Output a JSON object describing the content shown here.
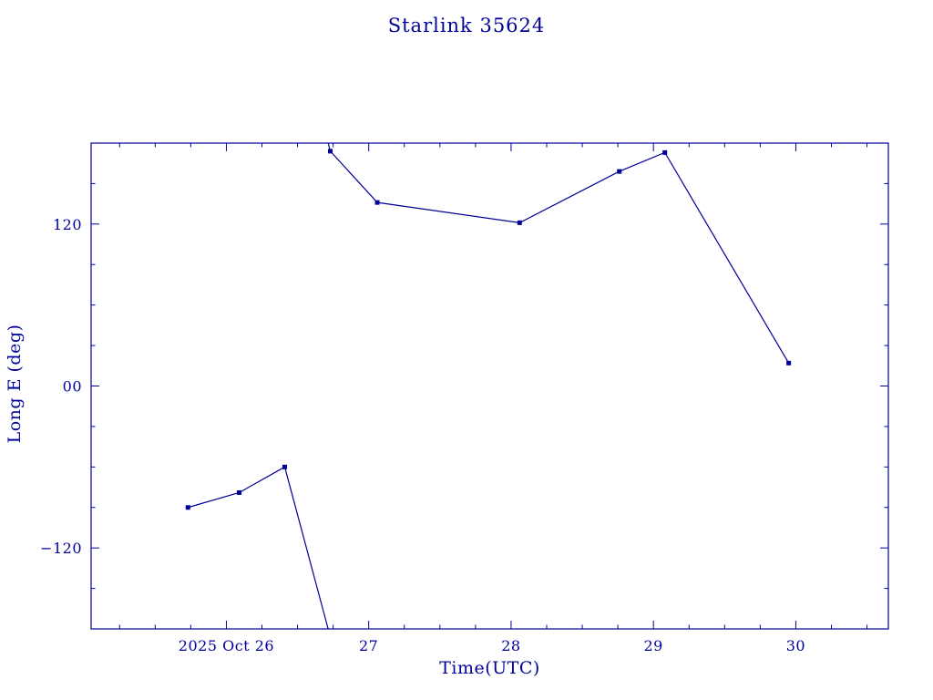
{
  "page": {
    "background": "#ffffff"
  },
  "chart_data": {
    "type": "line",
    "title": "Starlink 35624",
    "xlabel": "Time(UTC)",
    "ylabel": "Long E (deg)",
    "color": "#000099",
    "grid": false,
    "legend": "none",
    "xlim": [
      25.05,
      30.65
    ],
    "ylim": [
      -180,
      180
    ],
    "x_minor_step": 0.25,
    "y_minor_step": 30,
    "y_major_step": 120,
    "x_major_ticks": [
      {
        "value": 26,
        "label": "2025 Oct 26"
      },
      {
        "value": 27,
        "label": "27"
      },
      {
        "value": 28,
        "label": "28"
      },
      {
        "value": 29,
        "label": "29"
      },
      {
        "value": 30,
        "label": "30"
      }
    ],
    "y_major_ticks": [
      {
        "value": 120,
        "label": "120"
      },
      {
        "value": 0,
        "label": "00"
      },
      {
        "value": -120,
        "label": "−120"
      }
    ],
    "series": [
      {
        "name": "Long E",
        "marker": "square",
        "color": "#000099",
        "segments": [
          {
            "x": [
              25.73,
              26.09,
              26.41,
              26.715
            ],
            "y": [
              -90,
              -79,
              -60,
              -180
            ]
          },
          {
            "x": [
              26.715,
              26.73,
              27.06,
              28.06,
              28.76,
              29.08,
              29.95
            ],
            "y": [
              180,
              174,
              136,
              121,
              159,
              173,
              17
            ]
          }
        ],
        "points": [
          [
            25.73,
            -90
          ],
          [
            26.09,
            -79
          ],
          [
            26.41,
            -60
          ],
          [
            26.73,
            174
          ],
          [
            27.06,
            136
          ],
          [
            28.06,
            121
          ],
          [
            28.76,
            159
          ],
          [
            29.08,
            173
          ],
          [
            29.95,
            17
          ]
        ]
      }
    ]
  }
}
